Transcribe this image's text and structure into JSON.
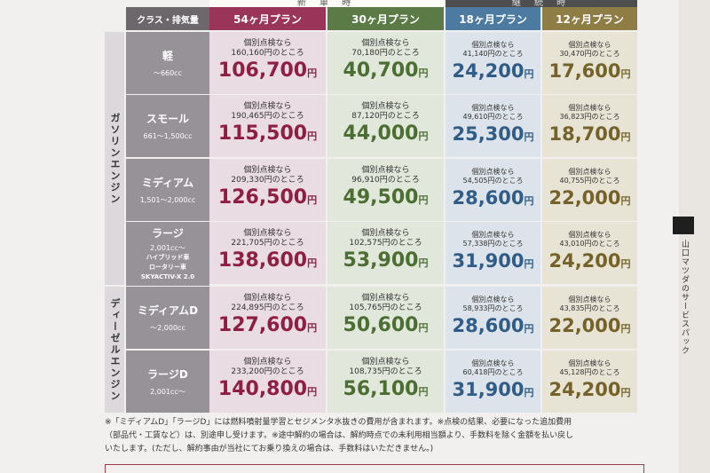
{
  "header": {
    "class_label": "クラス・排気量",
    "plans": [
      "54ヶ月プラン",
      "30ヶ月プラン",
      "18ヶ月プラン",
      "12ヶ月プラン"
    ],
    "group_new": "新 車 時",
    "group_continue": "継 続 時"
  },
  "groups": {
    "gasoline": "ガソリンエンジン",
    "diesel": "ディーゼルエンジン"
  },
  "colors": {
    "plan54_bg": "#e9dce2",
    "plan54_hdr": "#9a3458",
    "plan54_text": "#8f1e42",
    "plan30_bg": "#e1e7da",
    "plan30_hdr": "#5c7a46",
    "plan30_text": "#4b6e33",
    "plan18_bg": "#dde3ea",
    "plan18_hdr": "#4d7aa1",
    "plan18_text": "#2f5c88",
    "plan12_bg": "#e7e3d5",
    "plan12_hdr": "#8f7d46",
    "plan12_text": "#756229"
  },
  "rows": [
    {
      "name": "軽",
      "sub": "～660cc",
      "extra": [],
      "cells": [
        {
          "line1": "個別点検なら",
          "line2": "160,160円のところ",
          "price": "106,700",
          "yen": "円"
        },
        {
          "line1": "個別点検なら",
          "line2": "70,180円のところ",
          "price": "40,700",
          "yen": "円"
        },
        {
          "line1": "個別点検なら",
          "line2": "41,140円のところ",
          "price": "24,200",
          "yen": "円"
        },
        {
          "line1": "個別点検なら",
          "line2": "30,470円のところ",
          "price": "17,600",
          "yen": "円"
        }
      ]
    },
    {
      "name": "スモール",
      "sub": "661～1,500cc",
      "extra": [],
      "cells": [
        {
          "line1": "個別点検なら",
          "line2": "190,465円のところ",
          "price": "115,500",
          "yen": "円"
        },
        {
          "line1": "個別点検なら",
          "line2": "87,120円のところ",
          "price": "44,000",
          "yen": "円"
        },
        {
          "line1": "個別点検なら",
          "line2": "49,610円のところ",
          "price": "25,300",
          "yen": "円"
        },
        {
          "line1": "個別点検なら",
          "line2": "36,823円のところ",
          "price": "18,700",
          "yen": "円"
        }
      ]
    },
    {
      "name": "ミディアム",
      "sub": "1,501～2,000cc",
      "extra": [],
      "cells": [
        {
          "line1": "個別点検なら",
          "line2": "209,330円のところ",
          "price": "126,500",
          "yen": "円"
        },
        {
          "line1": "個別点検なら",
          "line2": "96,910円のところ",
          "price": "49,500",
          "yen": "円"
        },
        {
          "line1": "個別点検なら",
          "line2": "54,505円のところ",
          "price": "28,600",
          "yen": "円"
        },
        {
          "line1": "個別点検なら",
          "line2": "40,755円のところ",
          "price": "22,000",
          "yen": "円"
        }
      ]
    },
    {
      "name": "ラージ",
      "sub": "2,001cc～",
      "extra": [
        "ハイブリッド車",
        "ロータリー車",
        "SKYACTIV-X 2.0"
      ],
      "cells": [
        {
          "line1": "個別点検なら",
          "line2": "221,705円のところ",
          "price": "138,600",
          "yen": "円"
        },
        {
          "line1": "個別点検なら",
          "line2": "102,575円のところ",
          "price": "53,900",
          "yen": "円"
        },
        {
          "line1": "個別点検なら",
          "line2": "57,338円のところ",
          "price": "31,900",
          "yen": "円"
        },
        {
          "line1": "個別点検なら",
          "line2": "43,010円のところ",
          "price": "24,200",
          "yen": "円"
        }
      ]
    },
    {
      "name": "ミディアムD",
      "sub": "～2,000cc",
      "extra": [],
      "cells": [
        {
          "line1": "個別点検なら",
          "line2": "224,895円のところ",
          "price": "127,600",
          "yen": "円"
        },
        {
          "line1": "個別点検なら",
          "line2": "105,765円のところ",
          "price": "50,600",
          "yen": "円"
        },
        {
          "line1": "個別点検なら",
          "line2": "58,933円のところ",
          "price": "28,600",
          "yen": "円"
        },
        {
          "line1": "個別点検なら",
          "line2": "43,835円のところ",
          "price": "22,000",
          "yen": "円"
        }
      ]
    },
    {
      "name": "ラージD",
      "sub": "2,001cc～",
      "extra": [],
      "cells": [
        {
          "line1": "個別点検なら",
          "line2": "233,200円のところ",
          "price": "140,800",
          "yen": "円"
        },
        {
          "line1": "個別点検なら",
          "line2": "108,735円のところ",
          "price": "56,100",
          "yen": "円"
        },
        {
          "line1": "個別点検なら",
          "line2": "60,418円のところ",
          "price": "31,900",
          "yen": "円"
        },
        {
          "line1": "個別点検なら",
          "line2": "45,128円のところ",
          "price": "24,200",
          "yen": "円"
        }
      ]
    }
  ],
  "footnote": [
    "※「ミディアムD」「ラージD」には燃料噴射量学習とセジメンタ水抜きの費用が含まれます。※点検の結果、必要になった追加費用",
    "（部品代・工賃など）は、別途申し受けます。※途中解約の場合は、解約時点での未利用相当額より、手数料を除く金額を払い戻し",
    "いたします。(ただし、解約事由が当社にてお乗り換えの場合は、手数料はいただきません。)"
  ],
  "side_text": "山口マツダのサービスパック"
}
